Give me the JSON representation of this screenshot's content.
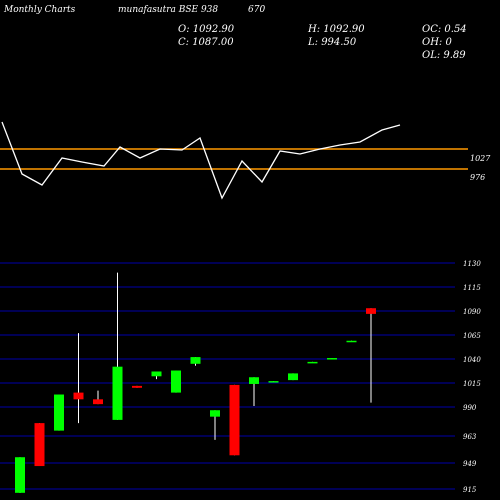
{
  "header": {
    "title": "Monthly Charts",
    "exchange_symbol": "munafasutra BSE 938",
    "extra": "670",
    "open_label": "O: 1092.90",
    "high_label": "H: 1092.90",
    "change_label": "OC: 0.54",
    "close_label": "C: 1087.00",
    "low_label": "L: 994.50",
    "oh_label": "OH: 0",
    "ol_label": "OL: 9.89"
  },
  "colors": {
    "background": "#000000",
    "up": "#00ff00",
    "down": "#ff0000",
    "indicator_line": "#ffffff",
    "level_line": "#ff9900",
    "grid": "#0000aa",
    "text": "#ffffff"
  },
  "chart_data": [
    {
      "type": "line",
      "name": "indicator",
      "levels": [
        {
          "value": 1027,
          "label": "1027"
        },
        {
          "value": 976,
          "label": "976"
        }
      ],
      "points": [
        [
          2,
          122
        ],
        [
          22,
          174
        ],
        [
          42,
          185
        ],
        [
          62,
          158
        ],
        [
          82,
          162
        ],
        [
          104,
          166
        ],
        [
          120,
          147
        ],
        [
          140,
          158
        ],
        [
          160,
          149
        ],
        [
          182,
          150
        ],
        [
          200,
          138
        ],
        [
          222,
          198
        ],
        [
          242,
          161
        ],
        [
          262,
          182
        ],
        [
          280,
          151
        ],
        [
          300,
          154
        ],
        [
          320,
          149
        ],
        [
          340,
          145
        ],
        [
          360,
          142
        ],
        [
          382,
          130
        ],
        [
          400,
          125
        ]
      ]
    },
    {
      "type": "candlestick",
      "name": "price",
      "y_ticks": [
        {
          "value": 1130,
          "label": "1130"
        },
        {
          "value": 1115,
          "label": "1115"
        },
        {
          "value": 1090,
          "label": "1090"
        },
        {
          "value": 1065,
          "label": "1065"
        },
        {
          "value": 1040,
          "label": "1040"
        },
        {
          "value": 1015,
          "label": "1015"
        },
        {
          "value": 990,
          "label": "990"
        },
        {
          "value": 963,
          "label": "963"
        },
        {
          "value": 949,
          "label": "949"
        },
        {
          "value": 915,
          "label": "915"
        }
      ],
      "candles": [
        {
          "open": 910,
          "close": 952,
          "high": 952,
          "low": 910
        },
        {
          "open": 975,
          "close": 945,
          "high": 975,
          "low": 945
        },
        {
          "open": 968,
          "close": 1003,
          "high": 1003,
          "low": 968
        },
        {
          "open": 1005,
          "close": 998,
          "high": 1067,
          "low": 975
        },
        {
          "open": 998,
          "close": 993,
          "high": 1007,
          "low": 993
        },
        {
          "open": 978,
          "close": 1032,
          "high": 1124,
          "low": 978
        },
        {
          "open": 1012,
          "close": 1010,
          "high": 1012,
          "low": 1010
        },
        {
          "open": 1022,
          "close": 1027,
          "high": 1027,
          "low": 1019
        },
        {
          "open": 1005,
          "close": 1028,
          "high": 1028,
          "low": 1005
        },
        {
          "open": 1035,
          "close": 1042,
          "high": 1042,
          "low": 1033
        },
        {
          "open": 981,
          "close": 987,
          "high": 987,
          "low": 961
        },
        {
          "open": 1013,
          "close": 953,
          "high": 1013,
          "low": 953
        },
        {
          "open": 1014,
          "close": 1021,
          "high": 1021,
          "low": 991
        },
        {
          "open": 1016,
          "close": 1017,
          "high": 1017,
          "low": 1016
        },
        {
          "open": 1018,
          "close": 1025,
          "high": 1025,
          "low": 1018
        },
        {
          "open": 1036,
          "close": 1037,
          "high": 1037,
          "low": 1036
        },
        {
          "open": 1040,
          "close": 1041,
          "high": 1041,
          "low": 1040
        },
        {
          "open": 1058,
          "close": 1059,
          "high": 1059,
          "low": 1058
        },
        {
          "open": 1092.9,
          "close": 1087,
          "high": 1092.9,
          "low": 994.5
        }
      ]
    }
  ]
}
